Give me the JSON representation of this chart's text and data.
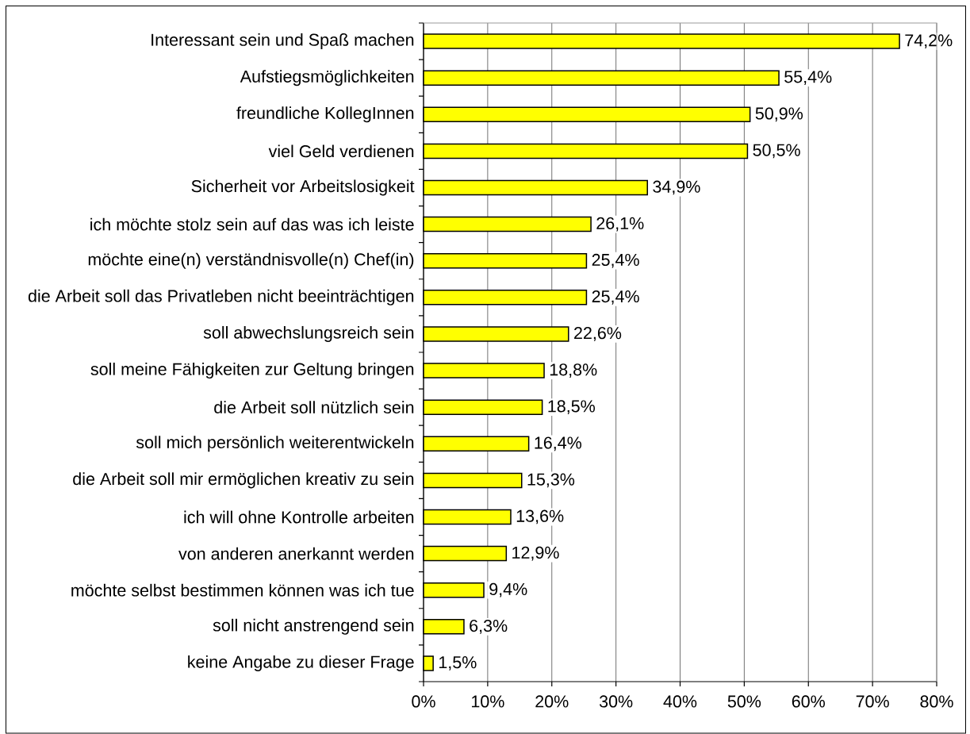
{
  "chart_data": {
    "type": "bar",
    "orientation": "horizontal",
    "categories": [
      "Interessant sein und Spaß machen",
      "Aufstiegsmöglichkeiten",
      "freundliche KollegInnen",
      "viel Geld verdienen",
      "Sicherheit vor Arbeitslosigkeit",
      "ich möchte stolz sein auf das was ich leiste",
      "möchte eine(n) verständnisvolle(n) Chef(in)",
      "die Arbeit soll das Privatleben nicht beeinträchtigen",
      "soll abwechslungsreich sein",
      "soll meine Fähigkeiten zur Geltung bringen",
      "die Arbeit soll nützlich sein",
      "soll mich persönlich weiterentwickeln",
      "die Arbeit soll mir ermöglichen kreativ zu sein",
      "ich will ohne Kontrolle arbeiten",
      "von anderen anerkannt werden",
      "möchte selbst bestimmen können was ich tue",
      "soll nicht anstrengend sein",
      "keine Angabe zu dieser Frage"
    ],
    "values": [
      74.2,
      55.4,
      50.9,
      50.5,
      34.9,
      26.1,
      25.4,
      25.4,
      22.6,
      18.8,
      18.5,
      16.4,
      15.3,
      13.6,
      12.9,
      9.4,
      6.3,
      1.5
    ],
    "value_labels": [
      "74,2%",
      "55,4%",
      "50,9%",
      "50,5%",
      "34,9%",
      "26,1%",
      "25,4%",
      "25,4%",
      "22,6%",
      "18,8%",
      "18,5%",
      "16,4%",
      "15,3%",
      "13,6%",
      "12,9%",
      "9,4%",
      "6,3%",
      "1,5%"
    ],
    "color": "#ffff00",
    "xlim": [
      0,
      80
    ],
    "xticks": [
      {
        "value": 0,
        "label": "0%"
      },
      {
        "value": 10,
        "label": "10%"
      },
      {
        "value": 20,
        "label": "20%"
      },
      {
        "value": 30,
        "label": "30%"
      },
      {
        "value": 40,
        "label": "40%"
      },
      {
        "value": 50,
        "label": "50%"
      },
      {
        "value": 60,
        "label": "60%"
      },
      {
        "value": 70,
        "label": "70%"
      },
      {
        "value": 80,
        "label": "80%"
      }
    ],
    "grid": "x"
  }
}
